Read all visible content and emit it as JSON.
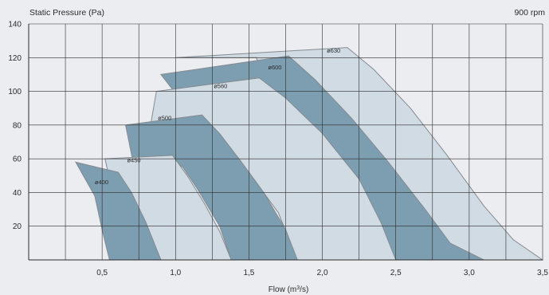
{
  "chart_data": {
    "type": "area",
    "title": "",
    "ylabel": "Static Pressure (Pa)",
    "speed_label": "900 rpm",
    "xlabel_prefix": "Flow (m",
    "xlabel_sup": "3",
    "xlabel_suffix": "/s)",
    "xlim": [
      0,
      3.5
    ],
    "ylim": [
      0,
      140
    ],
    "x_ticks": [
      0.5,
      1.0,
      1.5,
      2.0,
      2.5,
      3.0,
      3.5
    ],
    "x_tick_labels": [
      "0,5",
      "1,0",
      "1,5",
      "2,0",
      "2,5",
      "3,0",
      "3,5"
    ],
    "y_ticks": [
      20,
      40,
      60,
      80,
      100,
      120,
      140
    ],
    "y_tick_labels": [
      "20",
      "40",
      "60",
      "80",
      "100",
      "120",
      "140"
    ],
    "grid": true,
    "colors": {
      "light": "#d0dbe3",
      "dark": "#7d9db0",
      "edge": "#848b91",
      "grid": "#2b2b2b",
      "background": "#ecedf0"
    },
    "series": [
      {
        "name": "ø630",
        "style": "light",
        "label_at": [
          2.03,
          123
        ],
        "points": [
          [
            1.0,
            120
          ],
          [
            2.17,
            126
          ],
          [
            2.35,
            113
          ],
          [
            2.6,
            90
          ],
          [
            2.85,
            62
          ],
          [
            3.1,
            32
          ],
          [
            3.3,
            12
          ],
          [
            3.5,
            0
          ],
          [
            2.73,
            0
          ],
          [
            2.5,
            40
          ],
          [
            2.2,
            75
          ],
          [
            1.95,
            95
          ],
          [
            1.75,
            107
          ],
          [
            1.6,
            110
          ],
          [
            1.55,
            120
          ]
        ]
      },
      {
        "name": "ø600",
        "style": "dark",
        "label_at": [
          1.63,
          113
        ],
        "points": [
          [
            0.9,
            110
          ],
          [
            1.77,
            121
          ],
          [
            1.95,
            107
          ],
          [
            2.2,
            84
          ],
          [
            2.45,
            58
          ],
          [
            2.7,
            30
          ],
          [
            2.87,
            10
          ],
          [
            3.1,
            0
          ],
          [
            2.5,
            0
          ],
          [
            2.3,
            30
          ],
          [
            2.1,
            60
          ],
          [
            1.85,
            84
          ],
          [
            1.6,
            99
          ],
          [
            1.3,
            105
          ],
          [
            0.99,
            100
          ]
        ]
      },
      {
        "name": "ø560",
        "style": "light",
        "label_at": [
          1.26,
          102
        ],
        "points": [
          [
            0.87,
            100
          ],
          [
            1.57,
            108
          ],
          [
            1.75,
            96
          ],
          [
            2.0,
            75
          ],
          [
            2.25,
            48
          ],
          [
            2.4,
            22
          ],
          [
            2.5,
            0
          ],
          [
            1.83,
            0
          ],
          [
            1.7,
            28
          ],
          [
            1.5,
            52
          ],
          [
            1.3,
            68
          ],
          [
            1.2,
            80
          ],
          [
            1.0,
            76
          ],
          [
            0.81,
            70
          ]
        ]
      },
      {
        "name": "ø500",
        "style": "dark",
        "label_at": [
          0.88,
          83
        ],
        "points": [
          [
            0.66,
            80
          ],
          [
            1.18,
            86
          ],
          [
            1.3,
            75
          ],
          [
            1.45,
            58
          ],
          [
            1.6,
            40
          ],
          [
            1.75,
            18
          ],
          [
            1.83,
            0
          ],
          [
            1.38,
            0
          ],
          [
            1.3,
            20
          ],
          [
            1.15,
            42
          ],
          [
            1.05,
            55
          ],
          [
            0.97,
            60
          ],
          [
            0.9,
            56
          ],
          [
            0.72,
            54
          ]
        ]
      },
      {
        "name": "ø450",
        "style": "light",
        "label_at": [
          0.67,
          58
        ],
        "points": [
          [
            0.52,
            60
          ],
          [
            0.98,
            62
          ],
          [
            1.08,
            50
          ],
          [
            1.2,
            33
          ],
          [
            1.3,
            17
          ],
          [
            1.38,
            0
          ],
          [
            0.9,
            0
          ],
          [
            0.82,
            17
          ],
          [
            0.72,
            33
          ],
          [
            0.67,
            43
          ],
          [
            0.64,
            45
          ],
          [
            0.6,
            44
          ],
          [
            0.55,
            48
          ]
        ]
      },
      {
        "name": "ø400",
        "style": "dark",
        "label_at": [
          0.45,
          45
        ],
        "points": [
          [
            0.32,
            58
          ],
          [
            0.61,
            52
          ],
          [
            0.7,
            40
          ],
          [
            0.8,
            22
          ],
          [
            0.9,
            0
          ],
          [
            0.55,
            0
          ],
          [
            0.5,
            18
          ],
          [
            0.45,
            38
          ]
        ]
      }
    ]
  }
}
